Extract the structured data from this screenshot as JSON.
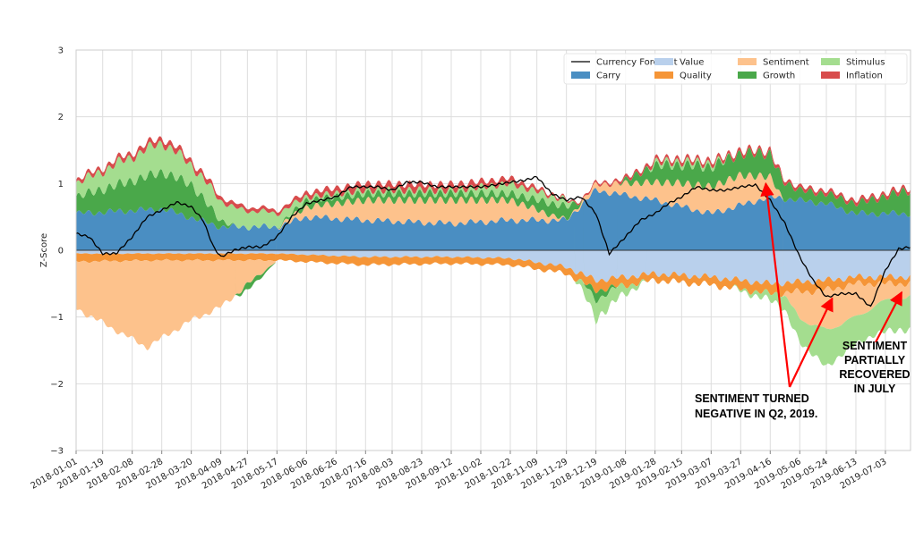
{
  "chart_data": {
    "type": "area",
    "subtype": "stacked-area-with-line",
    "ylabel": "Z-Score",
    "xlabel": "",
    "ylim": [
      -3,
      3
    ],
    "y_ticks": [
      -3,
      -2,
      -1,
      0,
      1,
      2,
      3
    ],
    "y_tick_labels": [
      "−3",
      "−2",
      "−1",
      "0",
      "1",
      "2",
      "3"
    ],
    "x_ticks": [
      "2018-01-01",
      "2018-01-19",
      "2018-02-08",
      "2018-02-28",
      "2018-03-20",
      "2018-04-09",
      "2018-04-27",
      "2018-05-17",
      "2018-06-06",
      "2018-06-26",
      "2018-07-16",
      "2018-08-03",
      "2018-08-23",
      "2018-09-12",
      "2018-10-02",
      "2018-10-22",
      "2018-11-09",
      "2018-11-29",
      "2018-12-19",
      "2019-01-08",
      "2019-01-28",
      "2019-02-15",
      "2019-03-07",
      "2019-03-27",
      "2019-04-16",
      "2019-05-06",
      "2019-05-24",
      "2019-06-13",
      "2019-07-03"
    ],
    "x_start": "2018-01-01",
    "x_end": "2019-07-20",
    "grid": true,
    "legend_position": "top-right",
    "series": [
      {
        "name": "Currency Forecast",
        "kind": "line",
        "color": "#000000",
        "points": [
          [
            "2018-01-01",
            0.25
          ],
          [
            "2018-01-10",
            0.2
          ],
          [
            "2018-01-19",
            -0.05
          ],
          [
            "2018-01-28",
            -0.05
          ],
          [
            "2018-02-08",
            0.2
          ],
          [
            "2018-02-18",
            0.5
          ],
          [
            "2018-02-28",
            0.6
          ],
          [
            "2018-03-10",
            0.72
          ],
          [
            "2018-03-20",
            0.65
          ],
          [
            "2018-03-28",
            0.45
          ],
          [
            "2018-04-04",
            0.05
          ],
          [
            "2018-04-09",
            -0.1
          ],
          [
            "2018-04-18",
            0.0
          ],
          [
            "2018-04-27",
            0.05
          ],
          [
            "2018-05-07",
            0.05
          ],
          [
            "2018-05-17",
            0.2
          ],
          [
            "2018-05-27",
            0.5
          ],
          [
            "2018-06-06",
            0.7
          ],
          [
            "2018-06-16",
            0.75
          ],
          [
            "2018-06-26",
            0.8
          ],
          [
            "2018-07-06",
            0.95
          ],
          [
            "2018-07-16",
            0.95
          ],
          [
            "2018-07-25",
            0.95
          ],
          [
            "2018-08-03",
            0.9
          ],
          [
            "2018-08-13",
            1.02
          ],
          [
            "2018-08-23",
            1.02
          ],
          [
            "2018-09-02",
            0.95
          ],
          [
            "2018-09-12",
            0.95
          ],
          [
            "2018-09-22",
            0.95
          ],
          [
            "2018-10-02",
            0.95
          ],
          [
            "2018-10-12",
            0.98
          ],
          [
            "2018-10-22",
            1.02
          ],
          [
            "2018-11-01",
            1.05
          ],
          [
            "2018-11-09",
            1.1
          ],
          [
            "2018-11-19",
            0.85
          ],
          [
            "2018-11-29",
            0.75
          ],
          [
            "2018-12-09",
            0.8
          ],
          [
            "2018-12-19",
            0.55
          ],
          [
            "2018-12-28",
            -0.05
          ],
          [
            "2019-01-08",
            0.2
          ],
          [
            "2019-01-18",
            0.45
          ],
          [
            "2019-01-28",
            0.55
          ],
          [
            "2019-02-06",
            0.7
          ],
          [
            "2019-02-15",
            0.8
          ],
          [
            "2019-02-25",
            0.95
          ],
          [
            "2019-03-07",
            0.9
          ],
          [
            "2019-03-17",
            0.9
          ],
          [
            "2019-03-27",
            0.95
          ],
          [
            "2019-04-06",
            0.98
          ],
          [
            "2019-04-16",
            0.75
          ],
          [
            "2019-04-26",
            0.4
          ],
          [
            "2019-05-06",
            -0.1
          ],
          [
            "2019-05-15",
            -0.45
          ],
          [
            "2019-05-24",
            -0.7
          ],
          [
            "2019-06-03",
            -0.65
          ],
          [
            "2019-06-13",
            -0.65
          ],
          [
            "2019-06-23",
            -0.85
          ],
          [
            "2019-07-03",
            -0.3
          ],
          [
            "2019-07-12",
            0.02
          ],
          [
            "2019-07-20",
            0.05
          ]
        ]
      },
      {
        "name": "Carry",
        "kind": "area",
        "color": "#4a8ec2",
        "points": [
          [
            "2018-01-01",
            0.55
          ],
          [
            "2018-03-01",
            0.62
          ],
          [
            "2018-04-09",
            0.35
          ],
          [
            "2018-05-17",
            0.35
          ],
          [
            "2018-06-06",
            0.5
          ],
          [
            "2018-07-16",
            0.45
          ],
          [
            "2018-09-12",
            0.4
          ],
          [
            "2018-10-22",
            0.45
          ],
          [
            "2018-11-29",
            0.45
          ],
          [
            "2018-12-19",
            0.9
          ],
          [
            "2019-01-28",
            0.75
          ],
          [
            "2019-03-07",
            0.55
          ],
          [
            "2019-04-16",
            0.8
          ],
          [
            "2019-05-24",
            0.7
          ],
          [
            "2019-06-13",
            0.55
          ],
          [
            "2019-07-20",
            0.55
          ]
        ]
      },
      {
        "name": "Value",
        "kind": "area",
        "color": "#b9d0ec",
        "points": [
          [
            "2018-01-01",
            -0.05
          ],
          [
            "2018-03-01",
            -0.05
          ],
          [
            "2018-05-17",
            -0.05
          ],
          [
            "2018-07-16",
            -0.1
          ],
          [
            "2018-09-12",
            -0.1
          ],
          [
            "2018-10-22",
            -0.12
          ],
          [
            "2018-11-29",
            -0.25
          ],
          [
            "2018-12-19",
            -0.45
          ],
          [
            "2019-01-28",
            -0.35
          ],
          [
            "2019-03-07",
            -0.4
          ],
          [
            "2019-04-16",
            -0.5
          ],
          [
            "2019-05-24",
            -0.45
          ],
          [
            "2019-06-13",
            -0.4
          ],
          [
            "2019-07-20",
            -0.4
          ]
        ]
      },
      {
        "name": "Quality",
        "kind": "area",
        "color": "#f59537",
        "points": [
          [
            "2018-01-01",
            -0.12
          ],
          [
            "2018-03-01",
            -0.1
          ],
          [
            "2018-05-17",
            -0.1
          ],
          [
            "2018-07-16",
            -0.12
          ],
          [
            "2018-09-12",
            -0.1
          ],
          [
            "2018-10-22",
            -0.1
          ],
          [
            "2018-11-29",
            -0.1
          ],
          [
            "2018-12-19",
            -0.15
          ],
          [
            "2019-01-28",
            -0.1
          ],
          [
            "2019-03-07",
            -0.12
          ],
          [
            "2019-04-16",
            -0.15
          ],
          [
            "2019-05-24",
            -0.15
          ],
          [
            "2019-06-13",
            -0.1
          ],
          [
            "2019-07-20",
            -0.1
          ]
        ]
      },
      {
        "name": "Sentiment",
        "kind": "area",
        "color": "#fdc28c",
        "points": [
          [
            "2018-01-01",
            -0.7
          ],
          [
            "2018-02-18",
            -1.3
          ],
          [
            "2018-03-20",
            -0.9
          ],
          [
            "2018-04-09",
            -0.7
          ],
          [
            "2018-05-17",
            0.0
          ],
          [
            "2018-06-06",
            0.15
          ],
          [
            "2018-07-16",
            0.3
          ],
          [
            "2018-09-12",
            0.35
          ],
          [
            "2018-10-22",
            0.3
          ],
          [
            "2018-11-29",
            0.0
          ],
          [
            "2019-02-15",
            0.35
          ],
          [
            "2019-03-27",
            0.45
          ],
          [
            "2019-04-16",
            0.3
          ],
          [
            "2019-05-06",
            -0.4
          ],
          [
            "2019-05-24",
            -0.6
          ],
          [
            "2019-06-13",
            -0.5
          ],
          [
            "2019-07-03",
            -0.25
          ],
          [
            "2019-07-20",
            -0.2
          ]
        ]
      },
      {
        "name": "Growth",
        "kind": "area",
        "color": "#4aa84a",
        "points": [
          [
            "2018-01-01",
            0.25
          ],
          [
            "2018-02-28",
            0.55
          ],
          [
            "2018-03-20",
            0.5
          ],
          [
            "2018-04-09",
            0.1
          ],
          [
            "2018-04-27",
            -0.1
          ],
          [
            "2018-05-17",
            0.0
          ],
          [
            "2018-06-06",
            0.1
          ],
          [
            "2018-07-16",
            0.1
          ],
          [
            "2018-09-12",
            0.1
          ],
          [
            "2018-10-22",
            0.1
          ],
          [
            "2018-11-29",
            0.2
          ],
          [
            "2018-12-19",
            -0.15
          ],
          [
            "2019-01-28",
            0.25
          ],
          [
            "2019-03-07",
            0.3
          ],
          [
            "2019-04-16",
            0.35
          ],
          [
            "2019-05-06",
            0.15
          ],
          [
            "2019-06-13",
            0.15
          ],
          [
            "2019-07-20",
            0.35
          ]
        ]
      },
      {
        "name": "Stimulus",
        "kind": "area",
        "color": "#a4dd8f",
        "points": [
          [
            "2018-01-01",
            0.2
          ],
          [
            "2018-02-28",
            0.45
          ],
          [
            "2018-03-20",
            0.3
          ],
          [
            "2018-04-09",
            0.3
          ],
          [
            "2018-05-17",
            0.2
          ],
          [
            "2018-06-06",
            0.05
          ],
          [
            "2018-07-16",
            0.05
          ],
          [
            "2018-09-12",
            0.05
          ],
          [
            "2018-10-22",
            0.15
          ],
          [
            "2018-11-29",
            0.1
          ],
          [
            "2018-12-19",
            -0.3
          ],
          [
            "2019-01-28",
            0.05
          ],
          [
            "2019-03-07",
            0.05
          ],
          [
            "2019-04-16",
            -0.1
          ],
          [
            "2019-05-06",
            -0.35
          ],
          [
            "2019-05-24",
            -0.55
          ],
          [
            "2019-06-13",
            -0.4
          ],
          [
            "2019-07-20",
            -0.5
          ]
        ]
      },
      {
        "name": "Inflation",
        "kind": "area",
        "color": "#d84c4c",
        "points": [
          [
            "2018-01-01",
            0.05
          ],
          [
            "2018-03-01",
            0.08
          ],
          [
            "2018-05-17",
            0.05
          ],
          [
            "2018-07-16",
            0.1
          ],
          [
            "2018-10-22",
            0.08
          ],
          [
            "2018-11-29",
            0.02
          ],
          [
            "2019-01-28",
            0.05
          ],
          [
            "2019-04-16",
            0.05
          ],
          [
            "2019-05-24",
            0.05
          ],
          [
            "2019-07-20",
            0.05
          ]
        ]
      }
    ],
    "annotations": [
      {
        "id": "q2-2019",
        "lines": [
          "SENTIMENT TURNED",
          "NEGATIVE IN Q2, 2019."
        ],
        "arrows_to": [
          [
            "2019-04-13",
            1.0
          ],
          [
            "2019-05-28",
            -0.72
          ]
        ],
        "arrow_color": "#ff0000"
      },
      {
        "id": "july",
        "lines": [
          "SENTIMENT",
          "PARTIALLY",
          "RECOVERED",
          "IN JULY"
        ],
        "arrows_to": [
          [
            "2019-07-14",
            -0.63
          ]
        ],
        "arrow_color": "#ff0000"
      }
    ]
  }
}
